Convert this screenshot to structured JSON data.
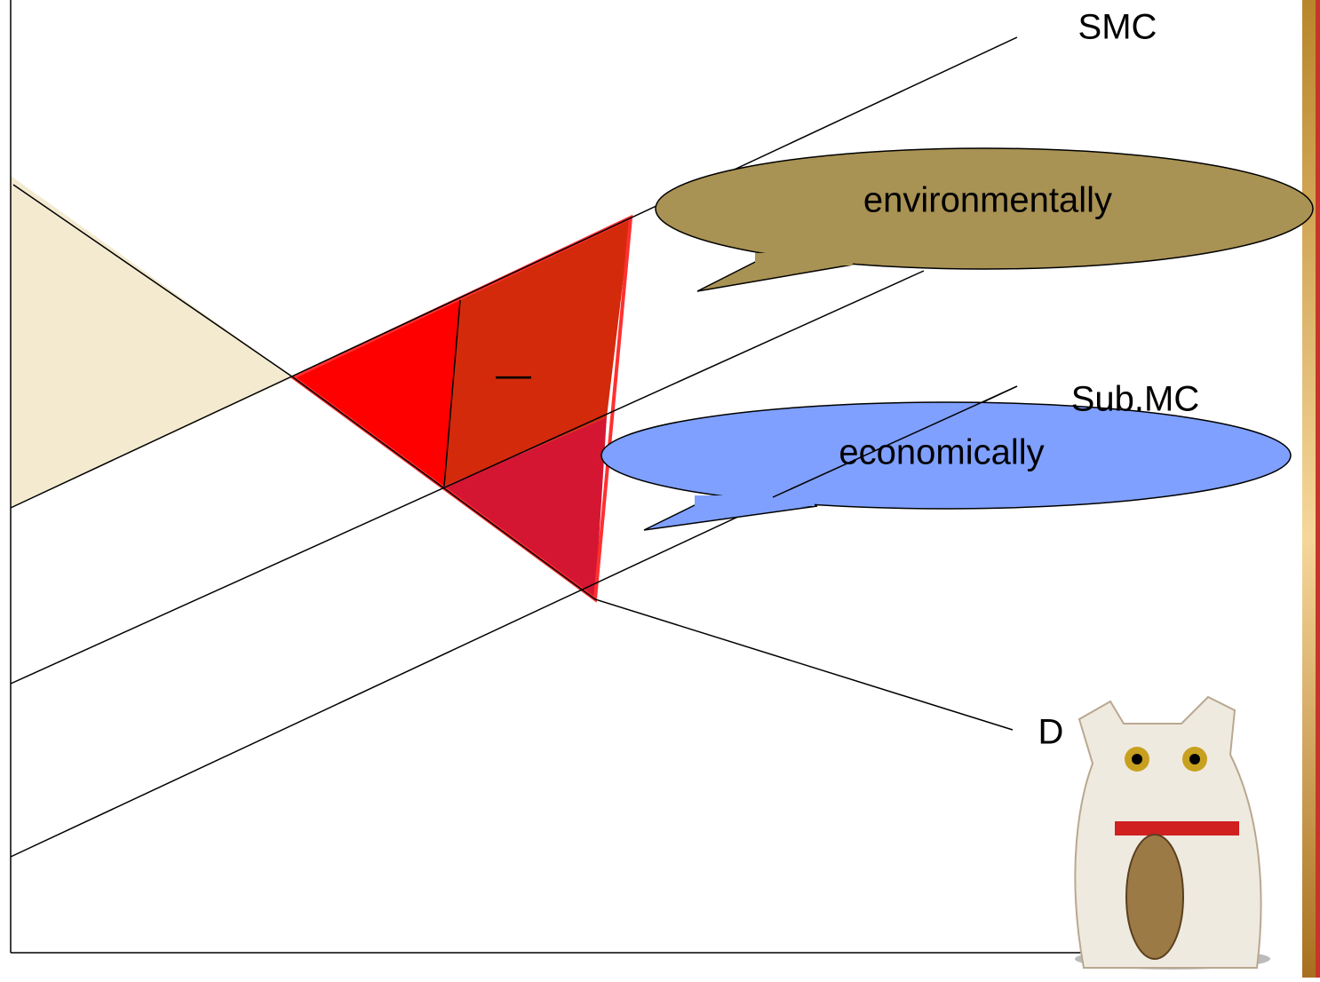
{
  "labels": {
    "smc": "SMC",
    "sub_mc": "Sub.MC",
    "demand": "D",
    "area_sign": "—"
  },
  "callouts": {
    "environmental": "environmentally",
    "economic": "economically"
  }
}
